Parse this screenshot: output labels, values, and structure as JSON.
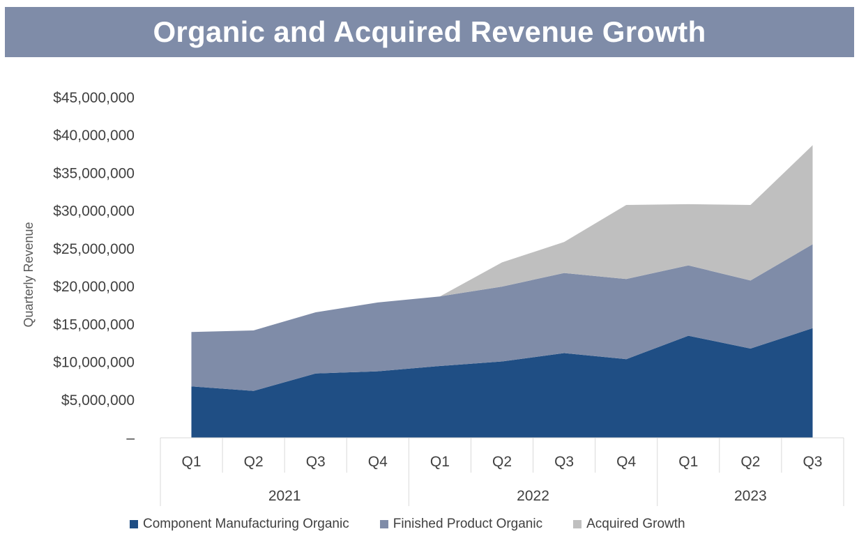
{
  "title": "Organic and Acquired Revenue Growth",
  "colors": {
    "title_bar": "#7f8ca8",
    "component": "#1f4e84",
    "finished": "#7f8ca8",
    "acquired": "#bfbfbf"
  },
  "chart_data": {
    "type": "area",
    "stacked": true,
    "title": "Organic and Acquired Revenue Growth",
    "xlabel": "",
    "ylabel": "Quarterly Revenue",
    "ylim": [
      0,
      45000000
    ],
    "y_ticks": [
      0,
      5000000,
      10000000,
      15000000,
      20000000,
      25000000,
      30000000,
      35000000,
      40000000,
      45000000
    ],
    "y_tick_labels": [
      "–",
      "$5,000,000",
      "$10,000,000",
      "$15,000,000",
      "$20,000,000",
      "$25,000,000",
      "$30,000,000",
      "$35,000,000",
      "$40,000,000",
      "$45,000,000"
    ],
    "categories": [
      "Q1",
      "Q2",
      "Q3",
      "Q4",
      "Q1",
      "Q2",
      "Q3",
      "Q4",
      "Q1",
      "Q2",
      "Q3"
    ],
    "year_groups": [
      {
        "label": "2021",
        "count": 4
      },
      {
        "label": "2022",
        "count": 4
      },
      {
        "label": "2023",
        "count": 3
      }
    ],
    "series": [
      {
        "name": "Component Manufacturing Organic",
        "values": [
          6800000,
          6200000,
          8500000,
          8800000,
          9500000,
          10100000,
          11200000,
          10400000,
          13500000,
          11800000,
          14500000
        ]
      },
      {
        "name": "Finished Product Organic",
        "values": [
          7200000,
          8000000,
          8100000,
          9100000,
          9200000,
          9900000,
          10600000,
          10600000,
          9300000,
          9000000,
          11100000
        ]
      },
      {
        "name": "Acquired Growth",
        "values": [
          0,
          0,
          0,
          0,
          0,
          3200000,
          4100000,
          9800000,
          8100000,
          10000000,
          13100000
        ]
      }
    ],
    "legend_position": "bottom",
    "grid": false
  }
}
